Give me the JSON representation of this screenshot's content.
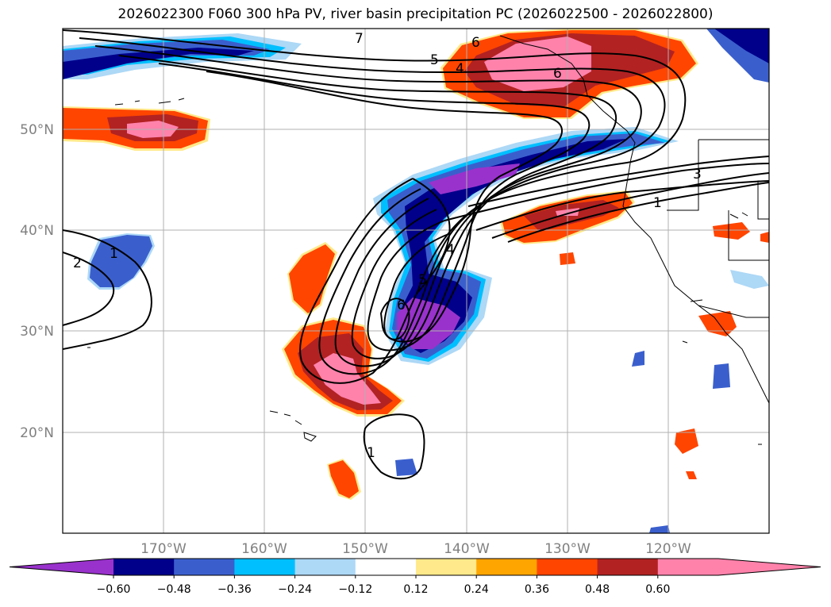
{
  "title": "2026022300 F060 300 hPa PV, river basin precipitation PC (2026022500 - 2026022800)",
  "map": {
    "lon_range": [
      -180,
      -110
    ],
    "lat_range": [
      10,
      60
    ],
    "lat_ticks": [
      {
        "value": 50,
        "label": "50°N"
      },
      {
        "value": 40,
        "label": "40°N"
      },
      {
        "value": 30,
        "label": "30°N"
      },
      {
        "value": 20,
        "label": "20°N"
      }
    ],
    "lon_ticks": [
      {
        "value": -170,
        "label": "170°W"
      },
      {
        "value": -160,
        "label": "160°W"
      },
      {
        "value": -150,
        "label": "150°W"
      },
      {
        "value": -140,
        "label": "140°W"
      },
      {
        "value": -130,
        "label": "130°W"
      },
      {
        "value": -120,
        "label": "120°W"
      }
    ],
    "grid": true,
    "pv_contour_labels": [
      "1",
      "2",
      "1",
      "3",
      "1",
      "4",
      "5",
      "6",
      "7",
      "6",
      "5",
      "4",
      "6"
    ]
  },
  "colorbar": {
    "ticks": [
      "−0.60",
      "−0.48",
      "−0.36",
      "−0.24",
      "−0.12",
      "0.12",
      "0.24",
      "0.36",
      "0.48",
      "0.60"
    ],
    "colors": [
      "#9932cc",
      "#00008b",
      "#3a5fcd",
      "#00bfff",
      "#add8f6",
      "#ffffff",
      "#ffe98a",
      "#ffa500",
      "#ff4500",
      "#b22222",
      "#ff82ab",
      "#ff82ab"
    ],
    "extend": "both"
  }
}
